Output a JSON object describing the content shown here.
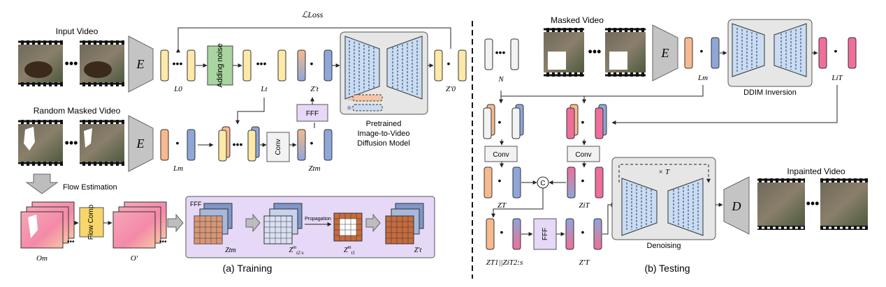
{
  "training": {
    "input_video_label": "Input Video",
    "random_masked_label": "Random Masked Video",
    "flow_estimation_label": "Flow Estimation",
    "encoder_label": "E",
    "adding_noise_label": "Adding noise",
    "conv_label": "Conv",
    "fff_label": "FFF",
    "flow_comp_label": "Flow Comp",
    "pretrained_label_1": "Pretrained",
    "pretrained_label_2": "Image-to-Video",
    "pretrained_label_3": "Diffusion Model",
    "propagation_label": "Propagation",
    "loss_label": "ℒLoss",
    "L0": "L0",
    "Lt": "Lt",
    "Lm": "Lm",
    "Zt_prime": "Z′t",
    "Z0_prime": "Z′0",
    "Ztm": "Ztm",
    "Om": "Om",
    "O_prime": "O′",
    "fff_inset_title": "FFF",
    "caption": "(a) Training"
  },
  "testing": {
    "masked_video_label": "Masked Video",
    "encoder_label": "E",
    "decoder_label": "D",
    "ddim_label": "DDIM Inversion",
    "N_label": "N",
    "Lm_label": "Lm",
    "LiT_label": "LiT",
    "conv_label": "Conv",
    "concat_label": "C",
    "fff_label": "FFF",
    "ZT_label": "ZT",
    "ZiT_label": "ZiT",
    "ZT1_label": "ZT1||ZiT2:s",
    "ZT_prime_label": "Z′T",
    "timesT_label": "× T",
    "denoising_label": "Denoising",
    "inpainted_label": "Inpainted Video",
    "caption": "(b) Testing"
  },
  "colors": {
    "latent_yellow": "#fde9a8",
    "latent_orange": "#f7b98e",
    "latent_blue": "#8ea6d8",
    "latent_pink": "#ef6f9a",
    "noise_green": "#a9d5a0",
    "fff_purple": "#e6d8f7",
    "flow_yellow": "#f7d66b",
    "panel_gray": "#e6e6e6",
    "unet_blue": "#c9dcf2"
  }
}
